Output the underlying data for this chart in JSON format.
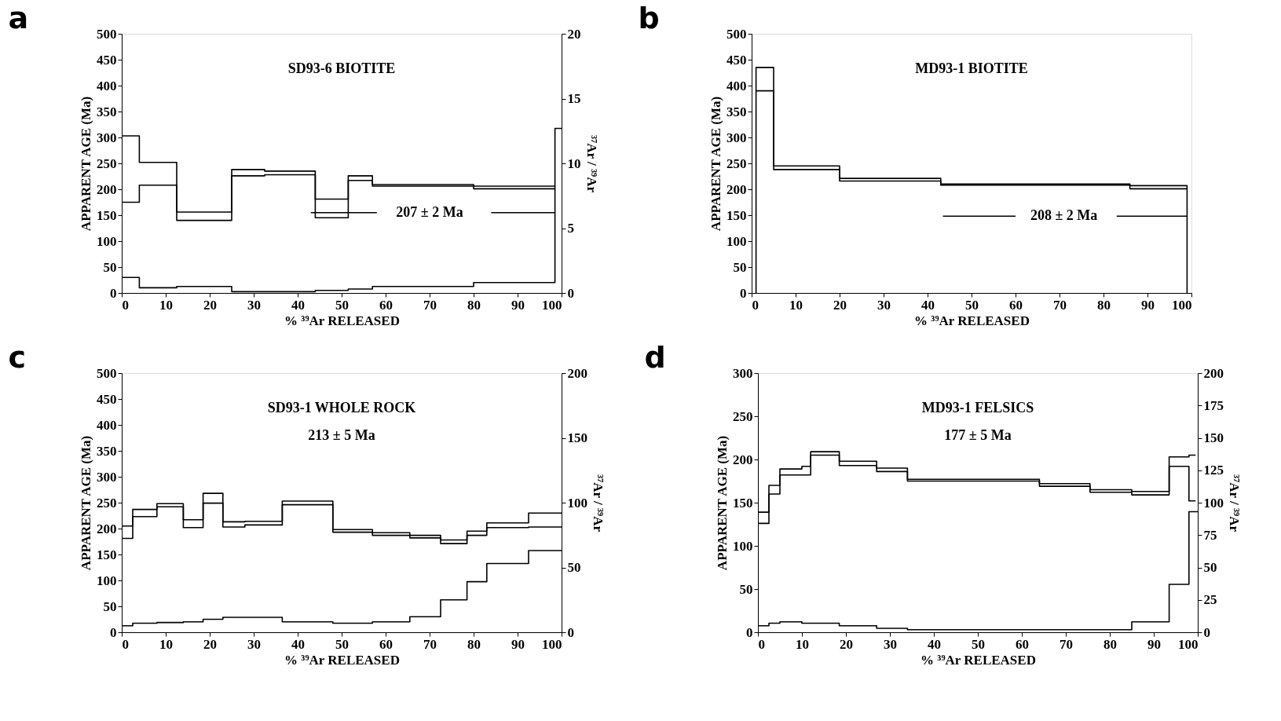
{
  "chart_data": [
    {
      "type": "step",
      "title": "a",
      "subtitle": "SD93-6    BIOTITE",
      "xlabel": "% ³⁹Ar RELEASED",
      "ylabel": "APPARENT AGE (Ma)",
      "y2label": "³⁷Ar / ³⁹Ar",
      "xlim": [
        0,
        100
      ],
      "xticks": [
        0,
        10,
        20,
        30,
        40,
        50,
        60,
        70,
        80,
        90,
        100
      ],
      "ylim": [
        0,
        500
      ],
      "yticks": [
        0,
        50,
        100,
        150,
        200,
        250,
        300,
        350,
        400,
        450,
        500
      ],
      "y2lim": [
        0,
        20
      ],
      "y2ticks": [
        0,
        5,
        10,
        15,
        20
      ],
      "grid": false,
      "series": [
        {
          "color": "#000000",
          "x": [
            0,
            4,
            12.5,
            25,
            32.5,
            44,
            51.5,
            57,
            80,
            98.5
          ],
          "values": [
            303,
            252,
            156,
            238,
            235,
            181,
            226,
            209,
            206,
            206
          ]
        },
        {
          "color": "#000000",
          "x": [
            0,
            4,
            12.5,
            25,
            32.5,
            44,
            51.5,
            57,
            80,
            98.5
          ],
          "values": [
            175,
            208,
            140,
            226,
            228,
            145,
            217,
            206,
            201,
            201
          ]
        },
        {
          "color": "#000000",
          "axis": "y2",
          "x": [
            0,
            4,
            12.5,
            25,
            44,
            51.5,
            57,
            80,
            98.5,
            100
          ],
          "values": [
            1.2,
            0.4,
            0.5,
            0.1,
            0.2,
            0.3,
            0.5,
            0.8,
            12.7,
            12.7
          ]
        },
        {
          "type": "line",
          "color": "#000000",
          "x": [
            43,
            58,
            70,
            84,
            98.5
          ],
          "values": [
            155,
            155,
            null,
            155,
            155
          ]
        }
      ],
      "annotations": [
        "207 ± 2 Ma"
      ]
    },
    {
      "type": "step",
      "title": "b",
      "subtitle": "MD93-1    BIOTITE",
      "xlabel": "% ³⁹Ar RELEASED",
      "ylabel": "APPARENT AGE (Ma)",
      "xlim": [
        0,
        100
      ],
      "xticks": [
        0,
        10,
        20,
        30,
        40,
        50,
        60,
        70,
        80,
        90,
        100
      ],
      "ylim": [
        0,
        500
      ],
      "yticks": [
        0,
        50,
        100,
        150,
        200,
        250,
        300,
        350,
        400,
        450,
        500
      ],
      "grid": false,
      "series": [
        {
          "color": "#000000",
          "x": [
            1,
            1,
            5,
            20,
            43,
            86,
            99,
            99
          ],
          "values": [
            0,
            435,
            245,
            221,
            210,
            207,
            207,
            0
          ]
        },
        {
          "color": "#000000",
          "x": [
            1,
            5,
            20,
            43,
            86,
            99
          ],
          "values": [
            390,
            238,
            216,
            208,
            201,
            201
          ]
        },
        {
          "type": "line",
          "color": "#000000",
          "x": [
            43.5,
            60,
            71,
            83,
            99
          ],
          "values": [
            148,
            148,
            null,
            148,
            148
          ]
        }
      ],
      "annotations": [
        "208 ± 2 Ma"
      ]
    },
    {
      "type": "step",
      "title": "c",
      "subtitle": "SD93-1    WHOLE ROCK",
      "xlabel": "% ³⁹Ar RELEASED",
      "ylabel": "APPARENT AGE (Ma)",
      "y2label": "³⁷Ar / ³⁹Ar",
      "xlim": [
        0,
        100
      ],
      "xticks": [
        0,
        10,
        20,
        30,
        40,
        50,
        60,
        70,
        80,
        90,
        100
      ],
      "ylim": [
        0,
        500
      ],
      "yticks": [
        0,
        50,
        100,
        150,
        200,
        250,
        300,
        350,
        400,
        450,
        500
      ],
      "y2lim": [
        0,
        200
      ],
      "y2ticks": [
        0,
        50,
        100,
        150,
        200
      ],
      "grid": false,
      "series": [
        {
          "color": "#000000",
          "x": [
            0,
            2.5,
            8,
            14,
            18.5,
            23,
            28,
            36.5,
            48,
            57,
            65.5,
            72.5,
            78.5,
            83,
            92.5,
            100
          ],
          "values": [
            205,
            237,
            248,
            217,
            268,
            213,
            214,
            253,
            198,
            192,
            187,
            178,
            195,
            211,
            230,
            230
          ]
        },
        {
          "color": "#000000",
          "x": [
            0,
            2.5,
            8,
            14,
            18.5,
            23,
            28,
            36.5,
            48,
            57,
            65.5,
            72.5,
            78.5,
            83,
            92.5,
            100
          ],
          "values": [
            181,
            223,
            242,
            202,
            249,
            203,
            207,
            246,
            193,
            187,
            182,
            171,
            187,
            202,
            203,
            203
          ]
        },
        {
          "color": "#000000",
          "axis": "y2",
          "x": [
            0,
            2.5,
            8,
            14,
            18.5,
            23,
            36.5,
            48,
            57,
            65.5,
            72.5,
            78.5,
            83,
            92.5,
            100
          ],
          "values": [
            5,
            7,
            7.5,
            8,
            10,
            11.5,
            8,
            7,
            8,
            12,
            25,
            39,
            53,
            63,
            63
          ]
        }
      ],
      "annotations": [
        "213 ± 5 Ma"
      ]
    },
    {
      "type": "step",
      "title": "d",
      "subtitle": "MD93-1    FELSICS",
      "xlabel": "% ³⁹Ar RELEASED",
      "ylabel": "APPARENT AGE (Ma)",
      "y2label": "³⁷Ar / ³⁹Ar",
      "xlim": [
        0,
        100
      ],
      "xticks": [
        0,
        10,
        20,
        30,
        40,
        50,
        60,
        70,
        80,
        90,
        100
      ],
      "ylim": [
        0,
        300
      ],
      "yticks": [
        0,
        50,
        100,
        150,
        200,
        250,
        300
      ],
      "y2lim": [
        0,
        200
      ],
      "y2ticks": [
        0,
        25,
        50,
        75,
        100,
        125,
        150,
        175,
        200
      ],
      "grid": false,
      "series": [
        {
          "color": "#000000",
          "x": [
            0,
            2.5,
            5,
            10,
            12,
            18.5,
            27,
            34,
            64,
            75.5,
            85,
            93.5,
            98,
            99.5
          ],
          "values": [
            139,
            170,
            189,
            192,
            209,
            198,
            190,
            177,
            172,
            165,
            163,
            203,
            205,
            205
          ]
        },
        {
          "color": "#000000",
          "x": [
            0,
            2.5,
            5,
            10,
            12,
            18.5,
            27,
            34,
            64,
            75.5,
            85,
            93.5,
            98,
            99.5
          ],
          "values": [
            126,
            160,
            182,
            182,
            205,
            193,
            186,
            175,
            169,
            162,
            159,
            192,
            152,
            152
          ]
        },
        {
          "color": "#000000",
          "axis": "y2",
          "x": [
            0,
            2.5,
            5,
            10,
            12,
            18.5,
            27,
            34,
            85,
            93.5,
            98,
            100
          ],
          "values": [
            5,
            7,
            8,
            7,
            7,
            5,
            3,
            2,
            8,
            37,
            93,
            93
          ]
        }
      ],
      "annotations": [
        "177 ± 5 Ma"
      ]
    }
  ]
}
